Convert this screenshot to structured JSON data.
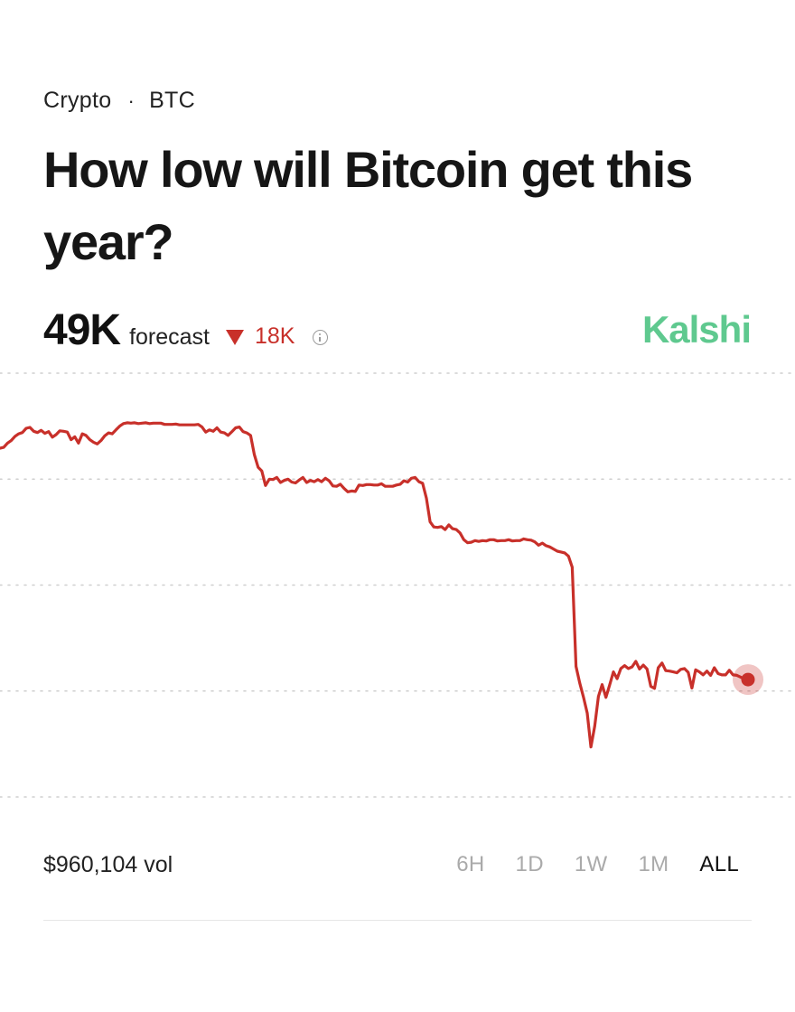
{
  "breadcrumb": {
    "category": "Crypto",
    "separator": "·",
    "ticker": "BTC"
  },
  "title": "How low will Bitcoin get this year?",
  "forecast": {
    "value": "49K",
    "label": "forecast",
    "change": "18K",
    "change_direction": "down",
    "change_color": "#c8302a"
  },
  "brand": {
    "name": "Kalshi",
    "color": "#5fc98f"
  },
  "icons": {
    "change": "triangle-down-icon",
    "info": "info-icon"
  },
  "chart_data": {
    "type": "line",
    "title": "",
    "xlabel": "",
    "ylabel": "",
    "grid": true,
    "ylim": [
      0,
      100
    ],
    "series": [
      {
        "color": "#c8302a",
        "x": [
          0,
          0.5,
          1,
          1.5,
          2,
          2.5,
          3,
          3.5,
          4,
          4.5,
          5,
          5.5,
          6,
          6.5,
          7,
          7.5,
          8,
          8.5,
          9,
          9.5,
          10,
          10.5,
          11,
          11.5,
          12,
          12.5,
          13,
          13.5,
          14,
          14.5,
          15,
          15.5,
          16,
          16.5,
          17,
          17.5,
          18,
          18.5,
          19,
          19.5,
          20,
          20.5,
          21,
          21.5,
          22,
          22.5,
          23,
          23.5,
          24,
          24.5,
          25,
          25.5,
          26,
          26.5,
          27,
          27.5,
          28,
          28.5,
          29,
          29.5,
          30,
          30.5,
          31,
          31.5,
          32,
          32.5,
          33,
          33.5,
          34,
          34.5,
          35,
          35.5,
          36,
          36.5,
          37,
          37.5,
          38,
          38.5,
          39,
          39.5,
          40,
          40.5,
          41,
          41.5,
          42,
          42.5,
          43,
          43.5,
          44,
          44.5,
          45,
          45.5,
          46,
          46.5,
          47,
          47.5,
          48,
          48.5,
          49,
          49.5,
          50,
          50.5,
          51,
          51.5,
          52,
          52.5,
          53,
          53.5,
          54,
          54.5,
          55,
          55.5,
          56,
          56.5,
          57,
          57.5,
          58,
          58.5,
          59,
          59.5,
          60,
          60.5,
          61,
          61.5,
          62,
          62.5,
          63,
          63.5,
          64,
          64.5,
          65,
          65.5,
          66,
          66.5,
          67,
          67.5,
          68,
          68.5,
          69,
          69.5,
          70,
          70.5,
          71,
          71.5,
          72,
          72.5,
          73,
          73.5,
          74,
          74.5,
          75,
          75.5,
          76,
          76.5,
          77,
          77.5,
          78,
          78.5,
          79,
          79.5,
          80,
          80.5,
          81,
          81.5,
          82,
          82.5,
          83,
          83.5,
          84,
          84.5,
          85,
          85.5,
          86,
          86.5,
          87,
          87.5,
          88,
          88.5,
          89,
          89.5,
          90,
          90.5,
          91,
          91.5,
          92,
          92.5,
          93,
          93.5,
          94,
          94.5,
          95,
          95.5,
          96,
          96.5,
          97,
          97.5,
          98,
          98.5,
          99,
          99.5,
          100
        ],
        "values": [
          82.3,
          82.5,
          83.5,
          84.1,
          85.1,
          85.7,
          86,
          87,
          87.2,
          86.3,
          86,
          86.5,
          85.8,
          86.2,
          84.9,
          85.5,
          86.4,
          86.3,
          86.1,
          84.3,
          85,
          83.5,
          85.7,
          85.3,
          84.3,
          83.7,
          83.3,
          84.1,
          85.2,
          85.9,
          85.7,
          86.6,
          87.5,
          88.1,
          88.3,
          88.2,
          88.3,
          88.1,
          88.2,
          88.3,
          88.1,
          88.2,
          88.2,
          88.2,
          87.9,
          87.9,
          87.9,
          88,
          87.8,
          87.8,
          87.8,
          87.8,
          87.8,
          87.9,
          87.3,
          86.1,
          86.6,
          86.3,
          87.1,
          86.1,
          85.9,
          85.3,
          86.2,
          87.1,
          87.3,
          86.2,
          85.9,
          85.3,
          80.8,
          77.8,
          76.9,
          73.5,
          75,
          74.9,
          75.4,
          74.2,
          74.7,
          75,
          74.3,
          74.1,
          74.8,
          75.4,
          74.2,
          74.7,
          74.4,
          74.9,
          74.4,
          75.2,
          74.6,
          73.4,
          73.3,
          73.8,
          72.8,
          72,
          72.2,
          72.1,
          73.6,
          73.5,
          73.7,
          73.7,
          73.6,
          73.6,
          73.9,
          73.3,
          73.3,
          73.3,
          73.6,
          73.8,
          74.6,
          74.3,
          75.2,
          75.4,
          74.4,
          74,
          70.5,
          64.9,
          63.7,
          63.6,
          63.8,
          63.1,
          64.2,
          63.3,
          63.1,
          62.3,
          60.7,
          60,
          60.1,
          60.5,
          60.3,
          60.5,
          60.4,
          60.7,
          60.7,
          60.4,
          60.5,
          60.5,
          60.7,
          60.4,
          60.5,
          60.5,
          60.9,
          60.7,
          60.6,
          60.2,
          59.4,
          59.9,
          59.3,
          59,
          58.5,
          58,
          57.8,
          57.6,
          56.8,
          54.2,
          30.8,
          26.9,
          23.6,
          19.8,
          11.8,
          16.7,
          23.7,
          26.5,
          23.5,
          26.4,
          29.5,
          27.9,
          30.3,
          31,
          30.3,
          30.7,
          32,
          30.2,
          31.1,
          30.2,
          26.1,
          25.6,
          30.5,
          31.6,
          29.8,
          29.7,
          29.5,
          29.3,
          30.1,
          30.3,
          29.4,
          25.7,
          30,
          29.5,
          28.8,
          29.7,
          28.7,
          30.5,
          29.1,
          28.8,
          28.8,
          29.9,
          28.8,
          28.7,
          28.3,
          27.8,
          27.7
        ]
      }
    ]
  },
  "footer": {
    "volume": "$960,104 vol"
  },
  "ranges": [
    {
      "label": "6H",
      "active": false
    },
    {
      "label": "1D",
      "active": false
    },
    {
      "label": "1W",
      "active": false
    },
    {
      "label": "1M",
      "active": false
    },
    {
      "label": "ALL",
      "active": true
    }
  ]
}
